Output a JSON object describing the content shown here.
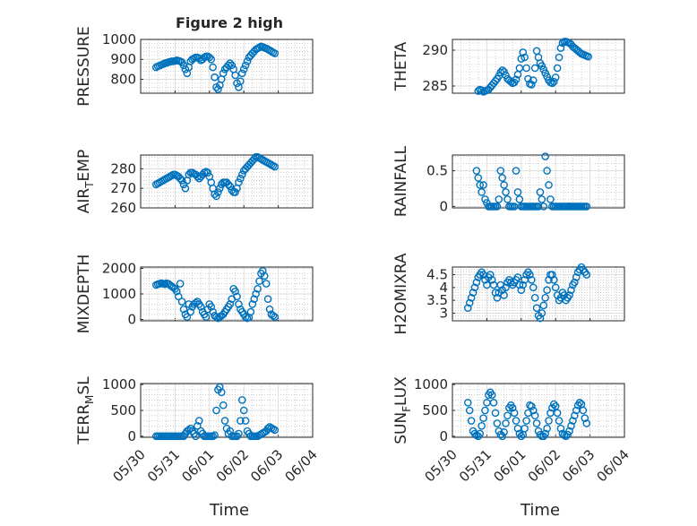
{
  "figure_title": "Figure 2 high",
  "xlabel": "Time",
  "date_ticks": [
    "05/30",
    "05/31",
    "06/01",
    "06/02",
    "06/03",
    "06/04"
  ],
  "colors": {
    "marker": "#0072BD",
    "axis": "#262626",
    "grid": "#B0B0B0"
  },
  "chart_data": [
    {
      "type": "scatter",
      "ylabel": "PRESSURE",
      "ylim": [
        730,
        1000
      ],
      "yticks": [
        800,
        900,
        1000
      ],
      "xlim": [
        0,
        5
      ],
      "grid": true,
      "minor_grid": true,
      "x": [
        0.45,
        0.5,
        0.55,
        0.6,
        0.65,
        0.7,
        0.75,
        0.8,
        0.85,
        0.9,
        0.95,
        1.0,
        1.05,
        1.1,
        1.15,
        1.2,
        1.25,
        1.3,
        1.35,
        1.4,
        1.45,
        1.5,
        1.55,
        1.6,
        1.65,
        1.7,
        1.75,
        1.8,
        1.85,
        1.9,
        1.95,
        2.0,
        2.05,
        2.1,
        2.15,
        2.2,
        2.25,
        2.3,
        2.35,
        2.4,
        2.45,
        2.5,
        2.55,
        2.6,
        2.65,
        2.7,
        2.75,
        2.8,
        2.85,
        2.9,
        2.95,
        3.0,
        3.05,
        3.1,
        3.15,
        3.2,
        3.25,
        3.3,
        3.35,
        3.4,
        3.45,
        3.5,
        3.55,
        3.6,
        3.65,
        3.7,
        3.75,
        3.8,
        3.85,
        3.9
      ],
      "y": [
        860,
        865,
        868,
        872,
        876,
        880,
        882,
        885,
        888,
        890,
        890,
        892,
        895,
        893,
        890,
        885,
        870,
        850,
        830,
        860,
        890,
        900,
        905,
        910,
        910,
        905,
        895,
        900,
        910,
        915,
        915,
        910,
        900,
        860,
        810,
        760,
        750,
        770,
        800,
        830,
        850,
        860,
        870,
        880,
        870,
        850,
        820,
        780,
        760,
        790,
        830,
        850,
        870,
        890,
        910,
        920,
        930,
        940,
        950,
        955,
        960,
        965,
        962,
        958,
        955,
        950,
        945,
        940,
        935,
        930
      ]
    },
    {
      "type": "scatter",
      "ylabel": "THETA",
      "ylim": [
        284,
        291.5
      ],
      "yticks": [
        285,
        290
      ],
      "xlim": [
        0,
        5
      ],
      "grid": true,
      "minor_grid": true,
      "x": [
        0.75,
        0.8,
        0.85,
        0.9,
        0.95,
        1.0,
        1.05,
        1.1,
        1.15,
        1.2,
        1.25,
        1.3,
        1.35,
        1.4,
        1.45,
        1.5,
        1.55,
        1.6,
        1.65,
        1.7,
        1.75,
        1.8,
        1.85,
        1.9,
        1.95,
        2.0,
        2.05,
        2.1,
        2.15,
        2.2,
        2.25,
        2.3,
        2.35,
        2.4,
        2.45,
        2.5,
        2.55,
        2.6,
        2.65,
        2.7,
        2.75,
        2.8,
        2.85,
        2.9,
        2.95,
        3.0,
        3.05,
        3.1,
        3.15,
        3.2,
        3.25,
        3.3,
        3.35,
        3.4,
        3.45,
        3.5,
        3.55,
        3.6,
        3.65,
        3.7,
        3.75,
        3.8,
        3.85,
        3.9,
        3.95
      ],
      "y": [
        284.3,
        284.5,
        284.4,
        284.2,
        284.3,
        284.4,
        284.5,
        284.8,
        285.1,
        285.4,
        285.7,
        286.0,
        286.4,
        286.9,
        287.2,
        287.0,
        286.5,
        286.0,
        285.8,
        285.6,
        285.4,
        285.5,
        285.9,
        286.6,
        287.5,
        288.8,
        289.7,
        289.0,
        287.5,
        286.0,
        285.3,
        285.2,
        285.8,
        287.5,
        289.9,
        289.0,
        288.2,
        287.8,
        287.3,
        286.8,
        286.3,
        285.8,
        285.5,
        285.4,
        285.6,
        286.2,
        287.5,
        289.0,
        290.3,
        291.0,
        291.2,
        291.2,
        291.1,
        291.0,
        290.8,
        290.5,
        290.3,
        290.1,
        289.9,
        289.7,
        289.5,
        289.4,
        289.3,
        289.2,
        289.1
      ]
    },
    {
      "type": "scatter",
      "ylabel": "AIR_TEMP",
      "ylim": [
        260,
        287
      ],
      "yticks": [
        260,
        270,
        280
      ],
      "xlim": [
        0,
        5
      ],
      "grid": true,
      "minor_grid": true,
      "x": [
        0.45,
        0.5,
        0.55,
        0.6,
        0.65,
        0.7,
        0.75,
        0.8,
        0.85,
        0.9,
        0.95,
        1.0,
        1.05,
        1.1,
        1.15,
        1.2,
        1.25,
        1.3,
        1.35,
        1.4,
        1.45,
        1.5,
        1.55,
        1.6,
        1.65,
        1.7,
        1.75,
        1.8,
        1.85,
        1.9,
        1.95,
        2.0,
        2.05,
        2.1,
        2.15,
        2.2,
        2.25,
        2.3,
        2.35,
        2.4,
        2.45,
        2.5,
        2.55,
        2.6,
        2.65,
        2.7,
        2.75,
        2.8,
        2.85,
        2.9,
        2.95,
        3.0,
        3.05,
        3.1,
        3.15,
        3.2,
        3.25,
        3.3,
        3.35,
        3.4,
        3.45,
        3.5,
        3.55,
        3.6,
        3.65,
        3.7,
        3.75,
        3.8,
        3.85,
        3.9
      ],
      "y": [
        272,
        272.5,
        273,
        273.5,
        274,
        274.5,
        275,
        275.5,
        276,
        276.5,
        277,
        277,
        276.5,
        276,
        275,
        274,
        272,
        270,
        274,
        277,
        278,
        278,
        277.5,
        277,
        276,
        275,
        276,
        277,
        278,
        278.5,
        278,
        276,
        273,
        270,
        267,
        266,
        268,
        270,
        272,
        273,
        273,
        273,
        272,
        271,
        269,
        268,
        268,
        270,
        273,
        275,
        277,
        279,
        280,
        281,
        282,
        283,
        284,
        285,
        286,
        286,
        285.5,
        285,
        284.5,
        284,
        283.5,
        283,
        282.5,
        282,
        281.5,
        281
      ]
    },
    {
      "type": "scatter",
      "ylabel": "RAINFALL",
      "ylim": [
        -0.02,
        0.72
      ],
      "yticks": [
        0,
        0.5
      ],
      "xlim": [
        0,
        5
      ],
      "grid": true,
      "minor_grid": true,
      "x": [
        0.7,
        0.75,
        0.8,
        0.85,
        0.9,
        0.95,
        1.0,
        1.05,
        1.1,
        1.15,
        1.2,
        1.25,
        1.3,
        1.35,
        1.4,
        1.45,
        1.5,
        1.55,
        1.6,
        1.65,
        1.7,
        1.75,
        1.8,
        1.85,
        1.9,
        1.95,
        2.0,
        2.05,
        2.1,
        2.15,
        2.2,
        2.25,
        2.3,
        2.35,
        2.4,
        2.45,
        2.5,
        2.55,
        2.6,
        2.65,
        2.7,
        2.75,
        2.8,
        2.85,
        2.9,
        2.95,
        3.0,
        3.05,
        3.1,
        3.15,
        3.2,
        3.25,
        3.3,
        3.35,
        3.4,
        3.45,
        3.5,
        3.55,
        3.6,
        3.65,
        3.7,
        3.75,
        3.8,
        3.85,
        3.9
      ],
      "y": [
        0.5,
        0.4,
        0.3,
        0.2,
        0.3,
        0.1,
        0.05,
        0,
        0,
        0,
        0,
        0,
        0,
        0.1,
        0.5,
        0.4,
        0.3,
        0.2,
        0.1,
        0,
        0,
        0,
        0,
        0.5,
        0.2,
        0.1,
        0,
        0,
        0,
        0,
        0,
        0,
        0,
        0,
        0,
        0,
        0,
        0.2,
        0.1,
        0,
        0.7,
        0.5,
        0.3,
        0.1,
        0,
        0,
        0,
        0,
        0,
        0,
        0,
        0,
        0,
        0,
        0,
        0,
        0,
        0,
        0,
        0,
        0,
        0,
        0,
        0,
        0
      ]
    },
    {
      "type": "scatter",
      "ylabel": "MIXDEPTH",
      "ylim": [
        -50,
        2050
      ],
      "yticks": [
        0,
        1000,
        2000
      ],
      "xlim": [
        0,
        5
      ],
      "grid": true,
      "minor_grid": true,
      "x": [
        0.45,
        0.5,
        0.55,
        0.6,
        0.65,
        0.7,
        0.75,
        0.8,
        0.85,
        0.9,
        0.95,
        1.0,
        1.05,
        1.1,
        1.15,
        1.2,
        1.25,
        1.3,
        1.35,
        1.4,
        1.45,
        1.5,
        1.55,
        1.6,
        1.65,
        1.7,
        1.75,
        1.8,
        1.85,
        1.9,
        1.95,
        2.0,
        2.05,
        2.1,
        2.15,
        2.2,
        2.25,
        2.3,
        2.35,
        2.4,
        2.45,
        2.5,
        2.55,
        2.6,
        2.65,
        2.7,
        2.75,
        2.8,
        2.85,
        2.9,
        2.95,
        3.0,
        3.05,
        3.1,
        3.15,
        3.2,
        3.25,
        3.3,
        3.35,
        3.4,
        3.45,
        3.5,
        3.55,
        3.6,
        3.65,
        3.7,
        3.75,
        3.8,
        3.85,
        3.9
      ],
      "y": [
        1350,
        1380,
        1400,
        1420,
        1400,
        1380,
        1420,
        1400,
        1350,
        1300,
        1250,
        1200,
        1100,
        900,
        1400,
        700,
        400,
        200,
        100,
        600,
        300,
        500,
        600,
        650,
        700,
        600,
        500,
        300,
        200,
        100,
        400,
        600,
        500,
        300,
        150,
        100,
        50,
        100,
        150,
        200,
        300,
        400,
        500,
        600,
        800,
        1200,
        1100,
        900,
        600,
        400,
        300,
        200,
        100,
        50,
        80,
        300,
        600,
        800,
        1000,
        1200,
        1500,
        1800,
        1900,
        1700,
        1400,
        800,
        400,
        200,
        150,
        100
      ]
    },
    {
      "type": "scatter",
      "ylabel": "H2OMIXRA",
      "ylim": [
        2.7,
        4.8
      ],
      "yticks": [
        3,
        3.5,
        4,
        4.5
      ],
      "xlim": [
        0,
        5
      ],
      "grid": true,
      "minor_grid": true,
      "x": [
        0.45,
        0.5,
        0.55,
        0.6,
        0.65,
        0.7,
        0.75,
        0.8,
        0.85,
        0.9,
        0.95,
        1.0,
        1.05,
        1.1,
        1.15,
        1.2,
        1.25,
        1.3,
        1.35,
        1.4,
        1.45,
        1.5,
        1.55,
        1.6,
        1.65,
        1.7,
        1.75,
        1.8,
        1.85,
        1.9,
        1.95,
        2.0,
        2.05,
        2.1,
        2.15,
        2.2,
        2.25,
        2.3,
        2.35,
        2.4,
        2.45,
        2.5,
        2.55,
        2.6,
        2.65,
        2.7,
        2.75,
        2.8,
        2.85,
        2.9,
        2.95,
        3.0,
        3.05,
        3.1,
        3.15,
        3.2,
        3.25,
        3.3,
        3.35,
        3.4,
        3.45,
        3.5,
        3.55,
        3.6,
        3.65,
        3.7,
        3.75,
        3.8,
        3.85,
        3.9
      ],
      "y": [
        3.2,
        3.4,
        3.6,
        3.8,
        4.0,
        4.2,
        4.4,
        4.5,
        4.6,
        4.5,
        4.3,
        4.1,
        4.4,
        4.5,
        4.3,
        4.1,
        3.8,
        3.6,
        3.8,
        4.1,
        3.9,
        3.7,
        4.0,
        4.2,
        4.3,
        4.2,
        4.1,
        4.2,
        4.3,
        4.4,
        4.1,
        3.9,
        4.1,
        4.3,
        4.5,
        4.6,
        4.5,
        4.3,
        4.0,
        3.6,
        3.2,
        2.9,
        2.8,
        3.0,
        3.3,
        3.6,
        3.9,
        4.3,
        4.5,
        4.5,
        4.3,
        4.0,
        3.7,
        3.5,
        3.6,
        3.8,
        3.7,
        3.5,
        3.6,
        3.7,
        3.9,
        4.1,
        4.2,
        4.4,
        4.6,
        4.7,
        4.8,
        4.7,
        4.6,
        4.5
      ]
    },
    {
      "type": "scatter",
      "ylabel": "TERR_MSL",
      "ylim": [
        -20,
        1020
      ],
      "yticks": [
        0,
        500,
        1000
      ],
      "xlim": [
        0,
        5
      ],
      "grid": true,
      "minor_grid": true,
      "x": [
        0.45,
        0.5,
        0.55,
        0.6,
        0.65,
        0.7,
        0.75,
        0.8,
        0.85,
        0.9,
        0.95,
        1.0,
        1.05,
        1.1,
        1.15,
        1.2,
        1.25,
        1.3,
        1.35,
        1.4,
        1.45,
        1.5,
        1.55,
        1.6,
        1.65,
        1.7,
        1.75,
        1.8,
        1.85,
        1.9,
        1.95,
        2.0,
        2.05,
        2.1,
        2.15,
        2.2,
        2.25,
        2.3,
        2.35,
        2.4,
        2.45,
        2.5,
        2.55,
        2.6,
        2.65,
        2.7,
        2.75,
        2.8,
        2.85,
        2.9,
        2.95,
        3.0,
        3.05,
        3.1,
        3.15,
        3.2,
        3.25,
        3.3,
        3.35,
        3.4,
        3.45,
        3.5,
        3.55,
        3.6,
        3.65,
        3.7,
        3.75,
        3.8,
        3.85,
        3.9
      ],
      "y": [
        0,
        0,
        0,
        0,
        0,
        0,
        0,
        0,
        0,
        0,
        0,
        0,
        0,
        0,
        0,
        0,
        0,
        50,
        100,
        120,
        150,
        100,
        50,
        0,
        200,
        300,
        100,
        50,
        0,
        0,
        0,
        0,
        0,
        0,
        20,
        500,
        900,
        950,
        850,
        600,
        300,
        150,
        50,
        100,
        0,
        0,
        0,
        0,
        50,
        300,
        700,
        500,
        300,
        100,
        50,
        0,
        0,
        0,
        0,
        0,
        20,
        40,
        60,
        80,
        100,
        150,
        180,
        160,
        140,
        120
      ]
    },
    {
      "type": "scatter",
      "ylabel": "SUN_FLUX",
      "ylim": [
        -20,
        1020
      ],
      "yticks": [
        0,
        500,
        1000
      ],
      "xlim": [
        0,
        5
      ],
      "grid": true,
      "minor_grid": true,
      "x": [
        0.45,
        0.5,
        0.55,
        0.6,
        0.65,
        0.7,
        0.75,
        0.8,
        0.85,
        0.9,
        0.95,
        1.0,
        1.05,
        1.1,
        1.15,
        1.2,
        1.25,
        1.3,
        1.35,
        1.4,
        1.45,
        1.5,
        1.55,
        1.6,
        1.65,
        1.7,
        1.75,
        1.8,
        1.85,
        1.9,
        1.95,
        2.0,
        2.05,
        2.1,
        2.15,
        2.2,
        2.25,
        2.3,
        2.35,
        2.4,
        2.45,
        2.5,
        2.55,
        2.6,
        2.65,
        2.7,
        2.75,
        2.8,
        2.85,
        2.9,
        2.95,
        3.0,
        3.05,
        3.1,
        3.15,
        3.2,
        3.25,
        3.3,
        3.35,
        3.4,
        3.45,
        3.5,
        3.55,
        3.6,
        3.65,
        3.7,
        3.75,
        3.8,
        3.85,
        3.9
      ],
      "y": [
        650,
        500,
        300,
        100,
        50,
        20,
        0,
        50,
        200,
        350,
        500,
        650,
        800,
        850,
        800,
        650,
        450,
        250,
        100,
        30,
        0,
        80,
        250,
        400,
        550,
        600,
        550,
        450,
        300,
        150,
        50,
        0,
        30,
        150,
        300,
        450,
        600,
        580,
        500,
        400,
        250,
        100,
        30,
        0,
        0,
        50,
        150,
        300,
        450,
        550,
        620,
        580,
        450,
        300,
        150,
        50,
        20,
        0,
        30,
        100,
        200,
        300,
        400,
        500,
        600,
        650,
        620,
        500,
        350,
        250
      ]
    }
  ]
}
